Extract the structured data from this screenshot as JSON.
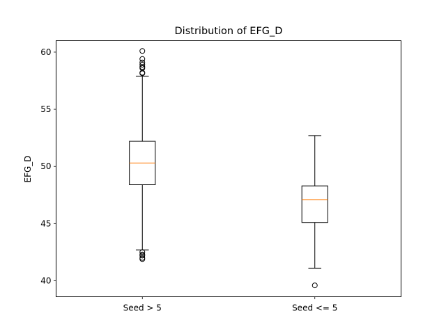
{
  "chart_data": {
    "type": "boxplot",
    "title": "Distribution of EFG_D",
    "xlabel": "",
    "ylabel": "EFG_D",
    "ylim": [
      38.6,
      61.0
    ],
    "yticks": [
      40,
      45,
      50,
      55,
      60
    ],
    "grid": false,
    "categories": [
      "Seed > 5",
      "Seed <= 5"
    ],
    "boxes": [
      {
        "name": "Seed > 5",
        "whisker_low": 42.7,
        "q1": 48.4,
        "median": 50.3,
        "q3": 52.2,
        "whisker_high": 57.9,
        "outliers": [
          60.1,
          59.4,
          59.1,
          58.9,
          58.7,
          58.6,
          58.2,
          58.15,
          42.5,
          42.3,
          42.2,
          42.0,
          41.9
        ]
      },
      {
        "name": "Seed <= 5",
        "whisker_low": 41.1,
        "q1": 45.1,
        "median": 47.1,
        "q3": 48.3,
        "whisker_high": 52.7,
        "outliers": [
          39.6
        ]
      }
    ],
    "colors": {
      "box": "#000000",
      "median": "#ff7f0e"
    }
  }
}
